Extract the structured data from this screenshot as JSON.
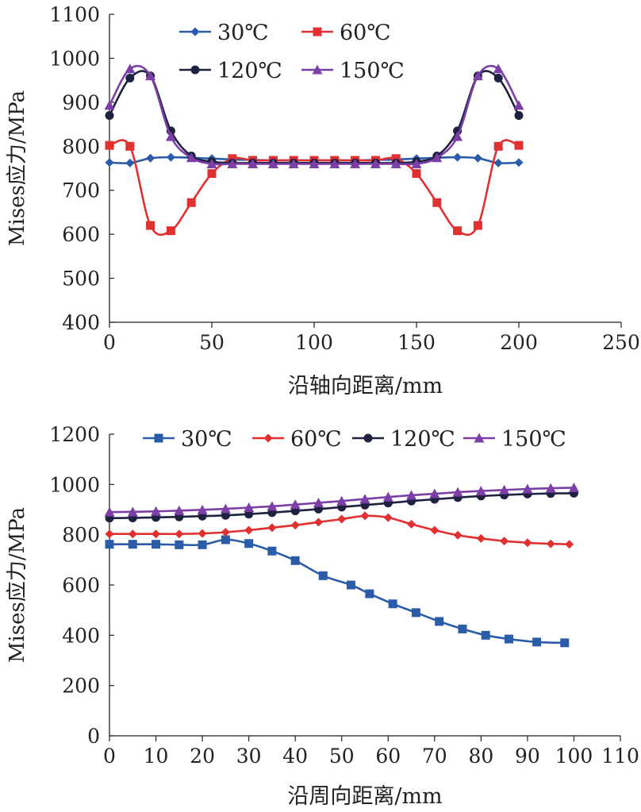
{
  "chart_data": [
    {
      "type": "line",
      "xlabel": "沿轴向距离/mm",
      "ylabel": "Mises应力/MPa",
      "xlim": [
        0,
        250
      ],
      "ylim": [
        400,
        1100
      ],
      "xticks": [
        "0",
        "50",
        "100",
        "150",
        "200",
        "250"
      ],
      "yticks": [
        "400",
        "500",
        "600",
        "700",
        "800",
        "900",
        "1000",
        "1100"
      ],
      "grid": false,
      "legend_position": "top",
      "series": [
        {
          "name": "30℃",
          "color": "#2a5ca8",
          "marker": "diamond",
          "x": [
            0,
            10,
            20,
            30,
            40,
            50,
            60,
            70,
            80,
            90,
            100,
            110,
            120,
            130,
            140,
            150,
            160,
            170,
            180,
            190,
            200
          ],
          "y": [
            763,
            762,
            773,
            775,
            774,
            772,
            770,
            769,
            768,
            768,
            768,
            768,
            768,
            769,
            770,
            772,
            774,
            775,
            773,
            762,
            763
          ]
        },
        {
          "name": "60℃",
          "color": "#e03030",
          "marker": "square",
          "x": [
            0,
            10,
            20,
            30,
            40,
            50,
            60,
            70,
            80,
            90,
            100,
            110,
            120,
            130,
            140,
            150,
            160,
            170,
            180,
            190,
            200
          ],
          "y": [
            802,
            800,
            620,
            608,
            672,
            738,
            772,
            768,
            768,
            768,
            768,
            768,
            768,
            768,
            772,
            738,
            672,
            608,
            620,
            800,
            802
          ]
        },
        {
          "name": "120℃",
          "color": "#1e2140",
          "marker": "circle",
          "x": [
            0,
            10,
            20,
            30,
            40,
            50,
            60,
            70,
            80,
            90,
            100,
            110,
            120,
            130,
            140,
            150,
            160,
            170,
            180,
            190,
            200
          ],
          "y": [
            870,
            955,
            960,
            835,
            778,
            765,
            762,
            762,
            762,
            762,
            762,
            762,
            762,
            762,
            762,
            765,
            778,
            835,
            960,
            955,
            870
          ]
        },
        {
          "name": "150℃",
          "color": "#7b3fa6",
          "marker": "triangle",
          "x": [
            0,
            10,
            20,
            30,
            40,
            50,
            60,
            70,
            80,
            90,
            100,
            110,
            120,
            130,
            140,
            150,
            160,
            170,
            180,
            190,
            200
          ],
          "y": [
            893,
            976,
            960,
            822,
            774,
            760,
            760,
            760,
            760,
            760,
            760,
            760,
            760,
            760,
            760,
            760,
            774,
            822,
            960,
            976,
            893
          ]
        }
      ]
    },
    {
      "type": "line",
      "xlabel": "沿周向距离/mm",
      "ylabel": "Mises应力/MPa",
      "xlim": [
        0,
        110
      ],
      "ylim": [
        0,
        1200
      ],
      "xticks": [
        "0",
        "10",
        "20",
        "30",
        "40",
        "50",
        "60",
        "70",
        "80",
        "90",
        "100",
        "110"
      ],
      "yticks": [
        "0",
        "200",
        "400",
        "600",
        "800",
        "1000",
        "1200"
      ],
      "grid": false,
      "legend_position": "top",
      "series": [
        {
          "name": "30℃",
          "color": "#2a5ca8",
          "marker": "square",
          "x": [
            0,
            5,
            10,
            15,
            20,
            25,
            30,
            35,
            40,
            46,
            52,
            56,
            61,
            66,
            71,
            76,
            81,
            86,
            92,
            98
          ],
          "y": [
            762,
            762,
            762,
            760,
            760,
            780,
            765,
            735,
            697,
            637,
            600,
            565,
            525,
            490,
            455,
            425,
            400,
            385,
            373,
            370
          ]
        },
        {
          "name": "60℃",
          "color": "#e03030",
          "marker": "diamond",
          "x": [
            0,
            5,
            10,
            15,
            20,
            25,
            30,
            35,
            40,
            45,
            50,
            55,
            60,
            65,
            70,
            75,
            80,
            85,
            90,
            95,
            99
          ],
          "y": [
            803,
            803,
            803,
            803,
            805,
            810,
            818,
            828,
            838,
            850,
            862,
            875,
            868,
            842,
            818,
            798,
            785,
            775,
            768,
            764,
            762
          ]
        },
        {
          "name": "120℃",
          "color": "#1e2140",
          "marker": "circle",
          "x": [
            0,
            5,
            10,
            15,
            20,
            25,
            30,
            35,
            40,
            45,
            50,
            55,
            60,
            65,
            70,
            75,
            80,
            85,
            90,
            95,
            100
          ],
          "y": [
            866,
            867,
            869,
            871,
            874,
            877,
            882,
            888,
            895,
            902,
            910,
            918,
            926,
            934,
            941,
            948,
            954,
            958,
            962,
            964,
            965
          ]
        },
        {
          "name": "150℃",
          "color": "#7b3fa6",
          "marker": "triangle",
          "x": [
            0,
            5,
            10,
            15,
            20,
            25,
            30,
            35,
            40,
            45,
            50,
            55,
            60,
            65,
            70,
            75,
            80,
            85,
            90,
            95,
            100
          ],
          "y": [
            890,
            891,
            893,
            896,
            899,
            903,
            908,
            913,
            920,
            927,
            934,
            942,
            950,
            957,
            963,
            969,
            974,
            978,
            982,
            985,
            987
          ]
        }
      ]
    }
  ]
}
